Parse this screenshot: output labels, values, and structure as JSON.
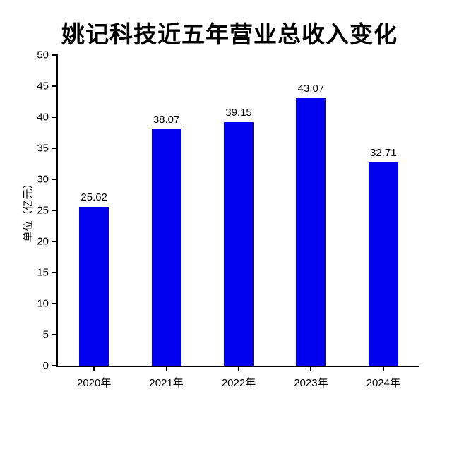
{
  "chart_data": {
    "type": "bar",
    "title": "姚记科技近五年营业总收入变化",
    "ylabel": "单位（亿元）",
    "xlabel": "",
    "categories": [
      "2020年",
      "2021年",
      "2022年",
      "2023年",
      "2024年"
    ],
    "values": [
      25.62,
      38.07,
      39.15,
      43.07,
      32.71
    ],
    "value_labels": [
      "25.62",
      "38.07",
      "39.15",
      "43.07",
      "32.71"
    ],
    "ylim": [
      0,
      50
    ],
    "yticks": [
      0,
      5,
      10,
      15,
      20,
      25,
      30,
      35,
      40,
      45,
      50
    ],
    "bar_color": "#0000ee",
    "axis_color": "#000000",
    "background_color": "#ffffff",
    "grid": false,
    "legend": false
  }
}
